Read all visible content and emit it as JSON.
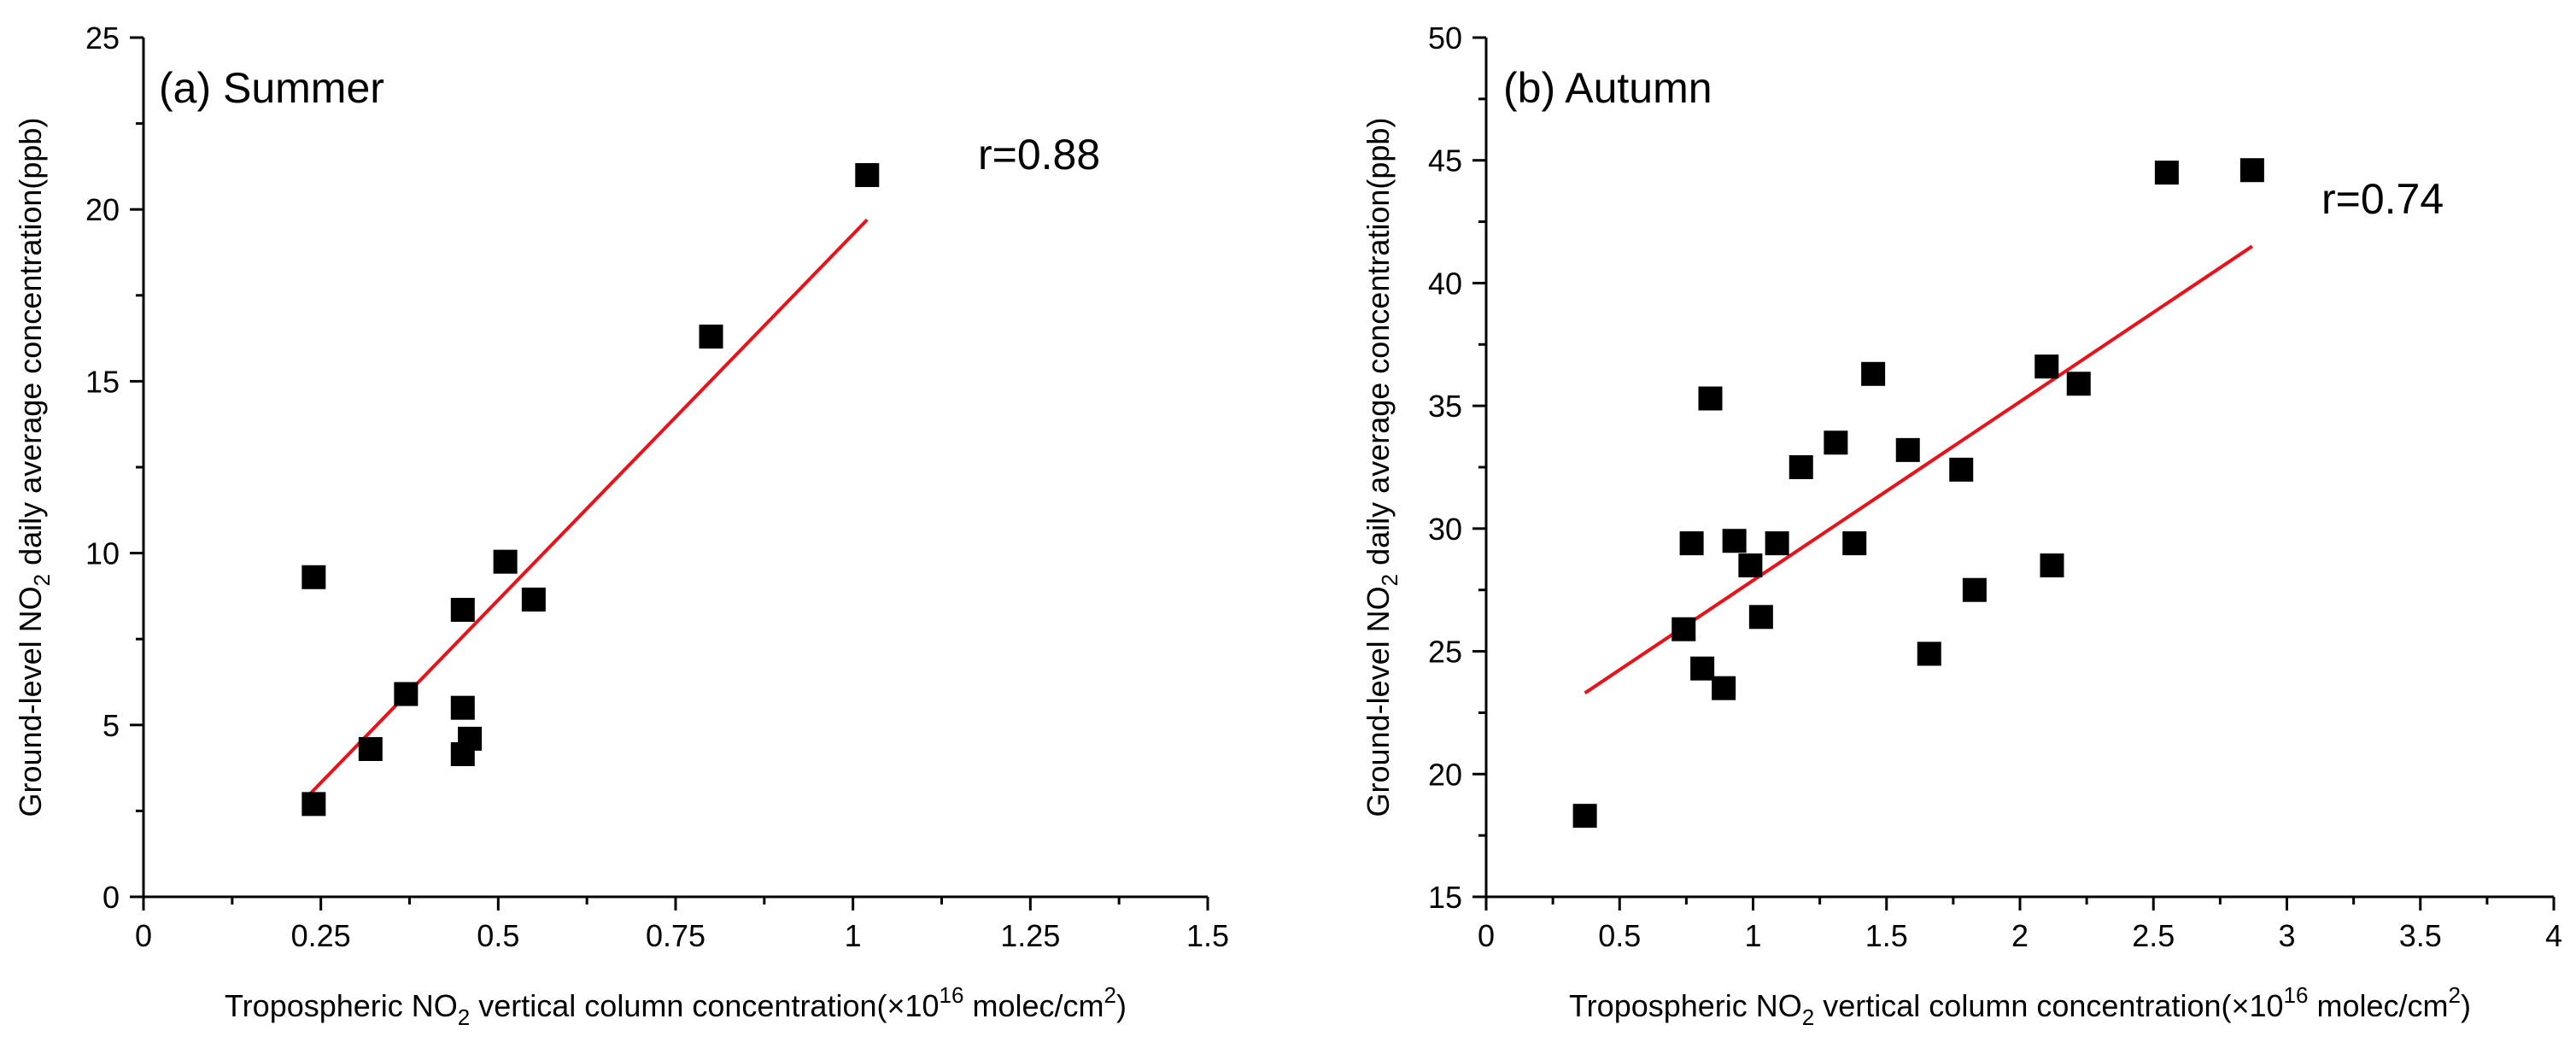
{
  "chart_data": [
    {
      "type": "scatter",
      "title": "(a) Summer",
      "xlabel": "Tropospheric NO2 vertical column concentration(×10^16 molec/cm^2)",
      "ylabel": "Ground-level NO2 daily average concentration(ppb)",
      "xlabel_parts": {
        "a": "Tropospheric NO",
        "sub": "2",
        "b": " vertical column concentration(×10",
        "sup": "16",
        "c": " molec/cm",
        "sup2": "2",
        "d": ")"
      },
      "ylabel_parts": {
        "a": "Ground-level NO",
        "sub": "2",
        "b": " daily average concentration(ppb)"
      },
      "xlim": [
        0,
        1.5
      ],
      "ylim": [
        0,
        25
      ],
      "xticks": [
        0,
        0.25,
        0.5,
        0.75,
        1,
        1.25,
        1.5
      ],
      "xtick_labels": [
        "0",
        "0.25",
        "0.5",
        "0.75",
        "1",
        "1.25",
        "1.5"
      ],
      "yticks": [
        0,
        5,
        10,
        15,
        20,
        25
      ],
      "ytick_labels": [
        "0",
        "5",
        "10",
        "15",
        "20",
        "25"
      ],
      "points": [
        {
          "x": 0.24,
          "y": 9.3
        },
        {
          "x": 0.24,
          "y": 2.7
        },
        {
          "x": 0.32,
          "y": 4.3
        },
        {
          "x": 0.37,
          "y": 5.9
        },
        {
          "x": 0.45,
          "y": 8.35
        },
        {
          "x": 0.45,
          "y": 5.5
        },
        {
          "x": 0.45,
          "y": 4.15
        },
        {
          "x": 0.46,
          "y": 4.6
        },
        {
          "x": 0.51,
          "y": 9.75
        },
        {
          "x": 0.55,
          "y": 8.65
        },
        {
          "x": 0.8,
          "y": 16.3
        },
        {
          "x": 1.02,
          "y": 21.0
        }
      ],
      "fit_line": {
        "x": [
          0.235,
          1.02
        ],
        "y": [
          3.0,
          19.7
        ],
        "color": "#e8121b"
      },
      "annotation": "r=0.88",
      "marker_color": "#000000"
    },
    {
      "type": "scatter",
      "title": "(b) Autumn",
      "xlabel": "Tropospheric NO2 vertical column concentration(×10^16 molec/cm^2)",
      "ylabel": "Ground-level NO2 daily average concentration(ppb)",
      "xlabel_parts": {
        "a": "Tropospheric NO",
        "sub": "2",
        "b": " vertical column concentration(×10",
        "sup": "16",
        "c": " molec/cm",
        "sup2": "2",
        "d": ")"
      },
      "ylabel_parts": {
        "a": "Ground-level NO",
        "sub": "2",
        "b": " daily average concentration(ppb)"
      },
      "xlim": [
        0,
        4
      ],
      "ylim": [
        15,
        50
      ],
      "xticks": [
        0,
        0.5,
        1,
        1.5,
        2,
        2.5,
        3,
        3.5,
        4
      ],
      "xtick_labels": [
        "0",
        "0.5",
        "1",
        "1.5",
        "2",
        "2.5",
        "3",
        "3.5",
        "4"
      ],
      "yticks": [
        15,
        20,
        25,
        30,
        35,
        40,
        45,
        50
      ],
      "ytick_labels": [
        "15",
        "20",
        "25",
        "30",
        "35",
        "40",
        "45",
        "50"
      ],
      "points": [
        {
          "x": 0.37,
          "y": 18.3
        },
        {
          "x": 0.74,
          "y": 25.9
        },
        {
          "x": 0.77,
          "y": 29.4
        },
        {
          "x": 0.81,
          "y": 24.3
        },
        {
          "x": 0.84,
          "y": 35.3
        },
        {
          "x": 0.89,
          "y": 23.5
        },
        {
          "x": 0.93,
          "y": 29.5
        },
        {
          "x": 0.99,
          "y": 28.5
        },
        {
          "x": 1.03,
          "y": 26.4
        },
        {
          "x": 1.09,
          "y": 29.4
        },
        {
          "x": 1.18,
          "y": 32.5
        },
        {
          "x": 1.31,
          "y": 33.5
        },
        {
          "x": 1.38,
          "y": 29.4
        },
        {
          "x": 1.45,
          "y": 36.3
        },
        {
          "x": 1.58,
          "y": 33.2
        },
        {
          "x": 1.66,
          "y": 24.9
        },
        {
          "x": 1.78,
          "y": 32.4
        },
        {
          "x": 1.83,
          "y": 27.5
        },
        {
          "x": 2.1,
          "y": 36.6
        },
        {
          "x": 2.12,
          "y": 28.5
        },
        {
          "x": 2.22,
          "y": 35.9
        },
        {
          "x": 2.55,
          "y": 44.5
        },
        {
          "x": 2.87,
          "y": 44.6
        }
      ],
      "fit_line": {
        "x": [
          0.37,
          2.87
        ],
        "y": [
          23.3,
          41.5
        ],
        "color": "#e8121b"
      },
      "annotation": "r=0.74",
      "marker_color": "#000000"
    }
  ]
}
